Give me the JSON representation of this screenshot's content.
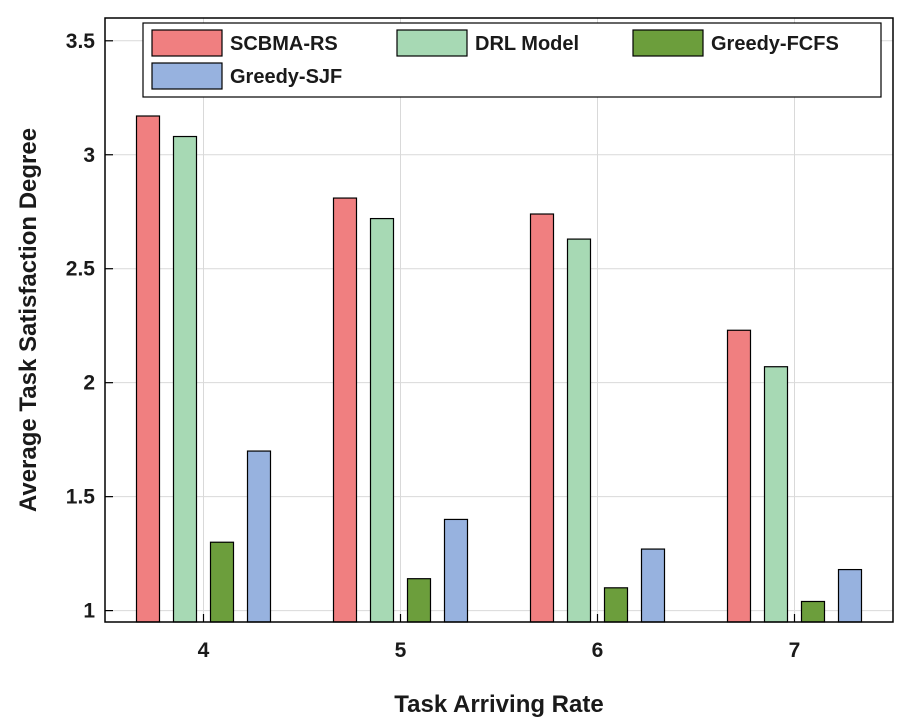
{
  "chart_data": {
    "type": "bar",
    "xlabel": "Task Arriving Rate",
    "ylabel": "Average Task Satisfaction Degree",
    "categories": [
      "4",
      "5",
      "6",
      "7"
    ],
    "ylim": [
      0.95,
      3.6
    ],
    "yticks": [
      1,
      1.5,
      2,
      2.5,
      3,
      3.5
    ],
    "ytick_labels": [
      "1",
      "1.5",
      "2",
      "2.5",
      "3",
      "3.5"
    ],
    "grid": true,
    "legend_position": "top",
    "series": [
      {
        "name": "SCBMA-RS",
        "color": "#f07f80",
        "values": [
          3.17,
          2.81,
          2.74,
          2.23
        ]
      },
      {
        "name": "DRL Model",
        "color": "#a7d9b4",
        "values": [
          3.08,
          2.72,
          2.63,
          2.07
        ]
      },
      {
        "name": "Greedy-FCFS",
        "color": "#6c9e3c",
        "values": [
          1.3,
          1.14,
          1.1,
          1.04
        ]
      },
      {
        "name": "Greedy-SJF",
        "color": "#97b2df",
        "values": [
          1.7,
          1.4,
          1.27,
          1.18
        ]
      }
    ]
  }
}
